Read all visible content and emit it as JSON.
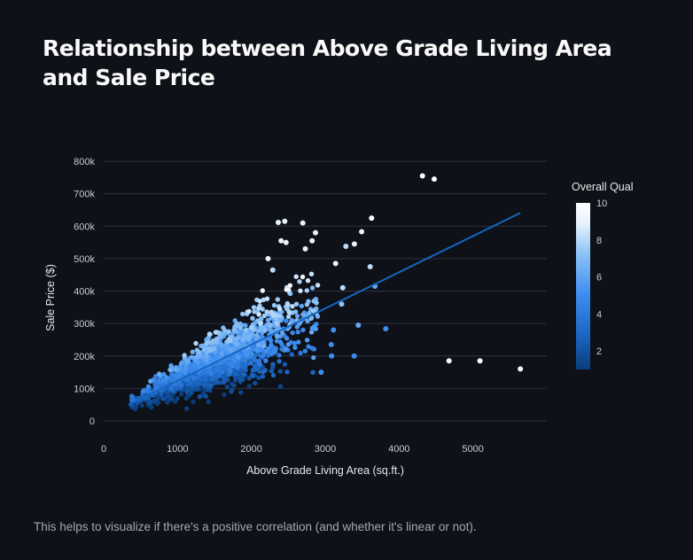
{
  "page": {
    "title": "Relationship between Above Grade Living Area and Sale Price",
    "caption": "This helps to visualize if there's a positive correlation (and whether it's linear or not)."
  },
  "chart_data": {
    "type": "scatter",
    "xlabel": "Above Grade Living Area (sq.ft.)",
    "ylabel": "Sale Price ($)",
    "xlim": [
      0,
      6000
    ],
    "ylim": [
      0,
      800000
    ],
    "x_ticks": [
      0,
      1000,
      2000,
      3000,
      4000,
      5000
    ],
    "x_tick_labels": [
      "0",
      "1000",
      "2000",
      "3000",
      "4000",
      "5000"
    ],
    "y_ticks": [
      0,
      100000,
      200000,
      300000,
      400000,
      500000,
      600000,
      700000,
      800000
    ],
    "y_tick_labels": [
      "0",
      "100k",
      "200k",
      "300k",
      "400k",
      "500k",
      "600k",
      "700k",
      "800k"
    ],
    "grid": true,
    "colorbar": {
      "title": "Overall Qual",
      "range": [
        1,
        10
      ],
      "ticks": [
        2,
        4,
        6,
        8,
        10
      ],
      "tick_labels": [
        "2",
        "4",
        "6",
        "8",
        "10"
      ],
      "colors": [
        "#0a3d7c",
        "#1a64c0",
        "#3d8df0",
        "#8fc4f7",
        "#e8f3fd",
        "#ffffff"
      ]
    },
    "trendline": {
      "x": [
        334,
        5642
      ],
      "y": [
        49000,
        641000
      ],
      "color": "#1565c0"
    },
    "points": [
      {
        "x": 4316,
        "y": 755000,
        "q": 10
      },
      {
        "x": 4476,
        "y": 745000,
        "q": 10
      },
      {
        "x": 4676,
        "y": 184750,
        "q": 10
      },
      {
        "x": 5095,
        "y": 184750,
        "q": 10
      },
      {
        "x": 5642,
        "y": 160000,
        "q": 10
      },
      {
        "x": 3627,
        "y": 625000,
        "q": 10
      },
      {
        "x": 3493,
        "y": 582933,
        "q": 9
      },
      {
        "x": 3279,
        "y": 538000,
        "q": 8
      },
      {
        "x": 3395,
        "y": 545000,
        "q": 9
      },
      {
        "x": 3608,
        "y": 475000,
        "q": 8
      },
      {
        "x": 3672,
        "y": 415000,
        "q": 6
      },
      {
        "x": 3820,
        "y": 284000,
        "q": 5
      },
      {
        "x": 3447,
        "y": 295000,
        "q": 6
      },
      {
        "x": 3392,
        "y": 200000,
        "q": 5
      },
      {
        "x": 3222,
        "y": 360000,
        "q": 7
      },
      {
        "x": 3140,
        "y": 485000,
        "q": 9
      },
      {
        "x": 3112,
        "y": 280000,
        "q": 5
      },
      {
        "x": 3086,
        "y": 200000,
        "q": 5
      },
      {
        "x": 3238,
        "y": 410000,
        "q": 8
      },
      {
        "x": 2945,
        "y": 150000,
        "q": 5
      },
      {
        "x": 3082,
        "y": 235000,
        "q": 5
      },
      {
        "x": 2822,
        "y": 555000,
        "q": 9
      },
      {
        "x": 2868,
        "y": 580000,
        "q": 9
      },
      {
        "x": 2696,
        "y": 610000,
        "q": 9
      },
      {
        "x": 2452,
        "y": 615000,
        "q": 9
      },
      {
        "x": 2364,
        "y": 611657,
        "q": 9
      },
      {
        "x": 2402,
        "y": 555000,
        "q": 9
      },
      {
        "x": 2470,
        "y": 550000,
        "q": 9
      },
      {
        "x": 2730,
        "y": 530000,
        "q": 9
      },
      {
        "x": 2226,
        "y": 500000,
        "q": 9
      },
      {
        "x": 2290,
        "y": 465000,
        "q": 8
      }
    ],
    "cloud": {
      "count": 1420,
      "seed": 7,
      "note": "dense cluster of remaining observations, roughly 400–3000 sq.ft. and 35k–500k"
    }
  }
}
